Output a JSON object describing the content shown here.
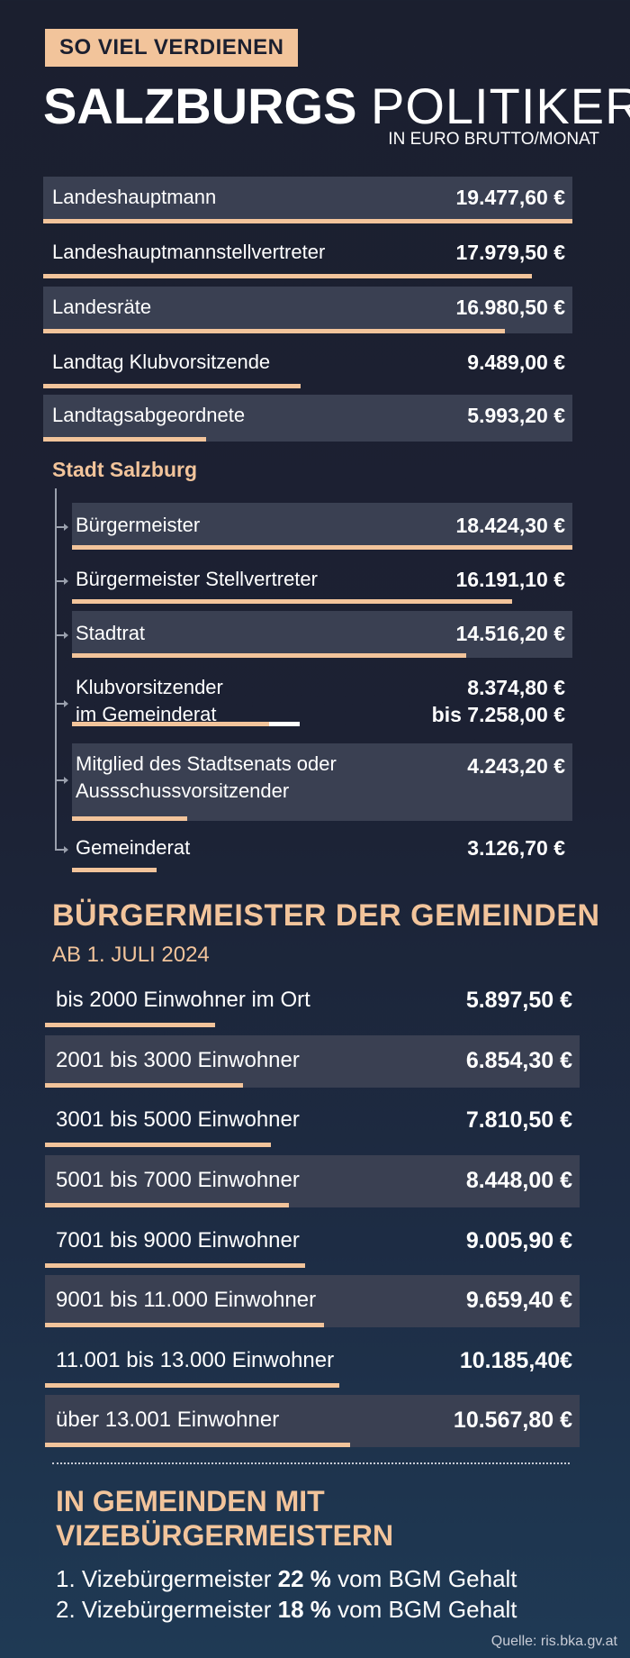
{
  "header": {
    "tag": "SO VIEL VERDIENEN",
    "title_bold": "SALZBURGS",
    "title_light": "POLITIKER",
    "subtitle": "IN EURO BRUTTO/MONAT"
  },
  "chart_data": [
    {
      "type": "bar",
      "categories": [
        "Landeshauptmann",
        "Landeshauptmannstellvertreter",
        "Landesräte",
        "Landtag Klubvorsitzende",
        "Landtagsabgeordnete"
      ],
      "values": [
        19477.6,
        17979.5,
        16980.5,
        9489.0,
        5993.2
      ],
      "value_labels": [
        "19.477,60 €",
        "17.979,50 €",
        "16.980,50 €",
        "9.489,00 €",
        "5.993,20 €"
      ],
      "ylim": [
        0,
        19477.6
      ]
    },
    {
      "type": "bar",
      "title": "Stadt Salzburg",
      "categories": [
        "Bürgermeister",
        "Bürgermeister Stellvertreter",
        "Stadtrat",
        "Klubvorsitzender im Gemeinderat",
        "Mitglied des Stadtsenats oder Aussschussvorsitzender",
        "Gemeinderat"
      ],
      "label_lines": [
        [
          "Bürgermeister"
        ],
        [
          "Bürgermeister Stellvertreter"
        ],
        [
          "Stadtrat"
        ],
        [
          "Klubvorsitzender",
          "im Gemeinderat"
        ],
        [
          "Mitglied des Stadtsenats oder",
          "Aussschussvorsitzender"
        ],
        [
          "Gemeinderat"
        ]
      ],
      "values": [
        18424.3,
        16191.1,
        14516.2,
        8374.8,
        4243.2,
        3126.7
      ],
      "range_low": [
        null,
        null,
        null,
        7258.0,
        null,
        null
      ],
      "value_labels": [
        [
          "18.424,30 €"
        ],
        [
          "16.191,10 €"
        ],
        [
          "14.516,20 €"
        ],
        [
          "8.374,80 €",
          "bis 7.258,00 €"
        ],
        [
          "4.243,20 €"
        ],
        [
          "3.126,70 €"
        ]
      ],
      "ylim": [
        0,
        18424.3
      ]
    },
    {
      "type": "bar",
      "title": "BÜRGERMEISTER DER GEMEINDEN",
      "subtitle": "AB 1. JULI 2024",
      "categories": [
        "bis 2000 Einwohner im Ort",
        "2001 bis 3000 Einwohner",
        "3001 bis 5000 Einwohner",
        "5001 bis 7000 Einwohner",
        "7001 bis 9000 Einwohner",
        "9001 bis 11.000 Einwohner",
        "11.001 bis 13.000 Einwohner",
        "über 13.001 Einwohner"
      ],
      "values": [
        5897.5,
        6854.3,
        7810.5,
        8448.0,
        9005.9,
        9659.4,
        10185.4,
        10567.8
      ],
      "value_labels": [
        "5.897,50 €",
        "6.854,30 €",
        "7.810,50 €",
        "8.448,00 €",
        "9.005,90 €",
        "9.659,40 €",
        "10.185,40€",
        "10.567,80 €"
      ],
      "ylim": [
        0,
        18500
      ]
    }
  ],
  "footer": {
    "heading_line1": "IN GEMEINDEN MIT",
    "heading_line2": "VIZEBÜRGERMEISTERN",
    "note1_pre": "1. Vizebürgermeister ",
    "note1_bold": "22 %",
    "note1_post": " vom BGM Gehalt",
    "note2_pre": "2. Vizebürgermeister ",
    "note2_bold": "18 %",
    "note2_post": " vom BGM Gehalt",
    "source": "Quelle: ris.bka.gv.at"
  },
  "colors": {
    "accent": "#f2c49b",
    "row_bg": "#3a4052",
    "background": "#1b1f2f"
  }
}
